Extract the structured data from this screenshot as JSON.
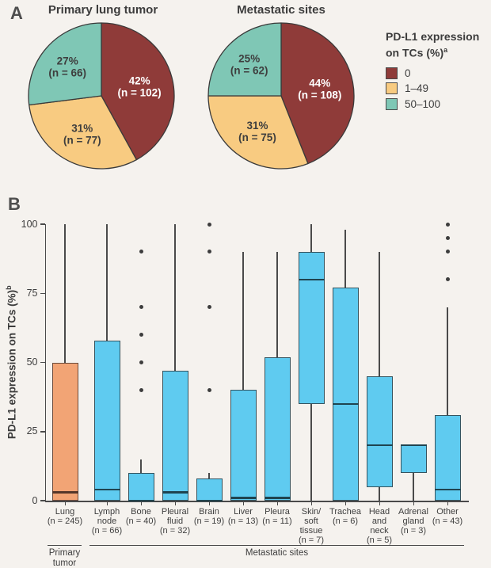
{
  "panel_a": {
    "label": "A",
    "legend": {
      "title_line1": "PD-L1 expression",
      "title_line2": "on TCs (%)",
      "title_sup": "a",
      "items": [
        {
          "label": "0",
          "color_key": "pie_red"
        },
        {
          "label": "1–49",
          "color_key": "pie_tan"
        },
        {
          "label": "50–100",
          "color_key": "pie_teal"
        }
      ]
    }
  },
  "panel_b": {
    "label": "B",
    "ylabel_prefix": "PD-L1 expression on TCs (%)",
    "ylabel_sup": "b"
  },
  "colors": {
    "pie_red": "#8F3B39",
    "pie_tan": "#F8CB81",
    "pie_teal": "#7FC7B5",
    "pie_outline": "#3A3A3A",
    "box_blue": "#5FCBF0",
    "box_blue_border": "#35535E",
    "box_blue_median": "#1F4450",
    "lung_orange": "#F2A475",
    "lung_border": "#6B4A3B",
    "lung_median": "#55372A",
    "axis": "#4A4A4A",
    "text": "#3E3E3E",
    "background": "#F5F2EE"
  },
  "chart_data": [
    {
      "type": "pie",
      "title": "Primary lung tumor",
      "categories": [
        "0",
        "1–49",
        "50–100"
      ],
      "values": [
        42,
        31,
        27
      ],
      "counts": [
        102,
        77,
        66
      ],
      "labels": [
        [
          "42%",
          "(n = 102)"
        ],
        [
          "31%",
          "(n = 77)"
        ],
        [
          "27%",
          "(n = 66)"
        ]
      ],
      "color_keys": [
        "pie_red",
        "pie_tan",
        "pie_teal"
      ],
      "label_colors": [
        "#FFFFFF",
        "#3E3E3E",
        "#3E3E3E"
      ],
      "legend_position": "right"
    },
    {
      "type": "pie",
      "title": "Metastatic sites",
      "categories": [
        "0",
        "1–49",
        "50–100"
      ],
      "values": [
        44,
        31,
        25
      ],
      "counts": [
        108,
        75,
        62
      ],
      "labels": [
        [
          "44%",
          "(n = 108)"
        ],
        [
          "31%",
          "(n = 75)"
        ],
        [
          "25%",
          "(n = 62)"
        ]
      ],
      "color_keys": [
        "pie_red",
        "pie_tan",
        "pie_teal"
      ],
      "label_colors": [
        "#FFFFFF",
        "#3E3E3E",
        "#3E3E3E"
      ],
      "legend_position": "right"
    },
    {
      "type": "box",
      "title": "",
      "xlabel": "",
      "ylabel": "PD-L1 expression on TCs (%)b",
      "ylim": [
        0,
        100
      ],
      "yticks": [
        0,
        25,
        50,
        75,
        100
      ],
      "grid": false,
      "group_axis": [
        {
          "label_lines": [
            "Primary",
            "tumor"
          ],
          "span": [
            0,
            0
          ]
        },
        {
          "label_lines": [
            "Metastatic sites"
          ],
          "span": [
            1,
            11
          ]
        }
      ],
      "boxes": [
        {
          "label_lines": [
            "Lung",
            "(n = 245)"
          ],
          "color_key": "orange",
          "min": 0,
          "q1": 0,
          "median": 3,
          "q3": 50,
          "max": 100,
          "outliers": []
        },
        {
          "label_lines": [
            "Lymph",
            "node",
            "(n = 66)"
          ],
          "color_key": "blue",
          "min": 0,
          "q1": 0,
          "median": 4,
          "q3": 58,
          "max": 100,
          "outliers": []
        },
        {
          "label_lines": [
            "Bone",
            "(n = 40)"
          ],
          "color_key": "blue",
          "min": 0,
          "q1": 0,
          "median": 0,
          "q3": 10,
          "max": 15,
          "outliers": [
            40,
            50,
            60,
            70,
            90
          ]
        },
        {
          "label_lines": [
            "Pleural",
            "fluid",
            "(n = 32)"
          ],
          "color_key": "blue",
          "min": 0,
          "q1": 0,
          "median": 3,
          "q3": 47,
          "max": 100,
          "outliers": []
        },
        {
          "label_lines": [
            "Brain",
            "(n = 19)"
          ],
          "color_key": "blue",
          "min": 0,
          "q1": 0,
          "median": 0,
          "q3": 8,
          "max": 10,
          "outliers": [
            40,
            70,
            90,
            100
          ]
        },
        {
          "label_lines": [
            "Liver",
            "(n = 13)"
          ],
          "color_key": "blue",
          "min": 0,
          "q1": 0,
          "median": 1,
          "q3": 40,
          "max": 90,
          "outliers": []
        },
        {
          "label_lines": [
            "Pleura",
            "(n = 11)"
          ],
          "color_key": "blue",
          "min": 0,
          "q1": 0,
          "median": 1,
          "q3": 52,
          "max": 90,
          "outliers": []
        },
        {
          "label_lines": [
            "Skin/",
            "soft",
            "tissue",
            "(n = 7)"
          ],
          "color_key": "blue",
          "min": 0,
          "q1": 35,
          "median": 80,
          "q3": 90,
          "max": 100,
          "outliers": []
        },
        {
          "label_lines": [
            "Trachea",
            "(n = 6)"
          ],
          "color_key": "blue",
          "min": 0,
          "q1": 0,
          "median": 35,
          "q3": 77,
          "max": 98,
          "outliers": []
        },
        {
          "label_lines": [
            "Head",
            "and",
            "neck",
            "(n = 5)"
          ],
          "color_key": "blue",
          "min": 0,
          "q1": 5,
          "median": 20,
          "q3": 45,
          "max": 90,
          "outliers": []
        },
        {
          "label_lines": [
            "Adrenal",
            "gland",
            "(n = 3)"
          ],
          "color_key": "blue",
          "min": 0,
          "q1": 10,
          "median": 20,
          "q3": 20,
          "max": 20,
          "outliers": []
        },
        {
          "label_lines": [
            "Other",
            "(n = 43)"
          ],
          "color_key": "blue",
          "min": 0,
          "q1": 0,
          "median": 4,
          "q3": 31,
          "max": 70,
          "outliers": [
            80,
            90,
            95,
            100
          ]
        }
      ]
    }
  ]
}
